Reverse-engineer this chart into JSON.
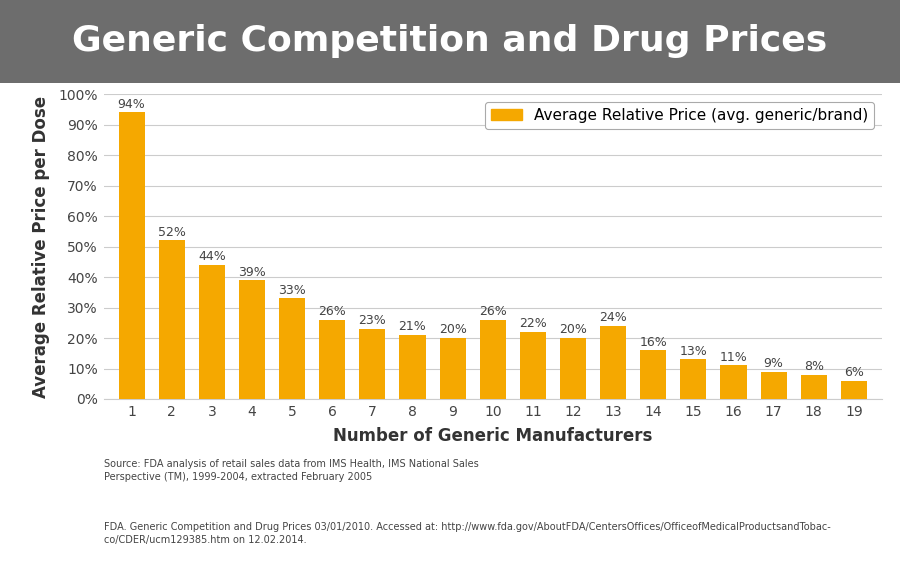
{
  "title": "Generic Competition and Drug Prices",
  "title_bg_color": "#6d6d6d",
  "title_text_color": "#ffffff",
  "xlabel": "Number of Generic Manufacturers",
  "ylabel": "Average Relative Price per Dose",
  "categories": [
    1,
    2,
    3,
    4,
    5,
    6,
    7,
    8,
    9,
    10,
    11,
    12,
    13,
    14,
    15,
    16,
    17,
    18,
    19
  ],
  "values": [
    94,
    52,
    44,
    39,
    33,
    26,
    23,
    21,
    20,
    26,
    22,
    20,
    24,
    16,
    13,
    11,
    9,
    8,
    6
  ],
  "bar_color": "#f5a800",
  "ylim": [
    0,
    100
  ],
  "yticks": [
    0,
    10,
    20,
    30,
    40,
    50,
    60,
    70,
    80,
    90,
    100
  ],
  "legend_label": "Average Relative Price (avg. generic/brand)",
  "legend_box_color": "#f5a800",
  "source_text1": "Source: FDA analysis of retail sales data from IMS Health, IMS National Sales\nPerspective (TM), 1999-2004, extracted February 2005",
  "source_text2": "FDA. Generic Competition and Drug Prices 03/01/2010. Accessed at: http://www.fda.gov/AboutFDA/CentersOffices/OfficeofMedicalProductsandTobac-\nco/CDER/ucm129385.htm on 12.02.2014.",
  "grid_color": "#cccccc",
  "bg_color": "#ffffff",
  "plot_bg_color": "#ffffff",
  "label_fontsize": 9,
  "title_fontsize": 26,
  "axis_label_fontsize": 12,
  "tick_fontsize": 10,
  "source_fontsize": 7
}
